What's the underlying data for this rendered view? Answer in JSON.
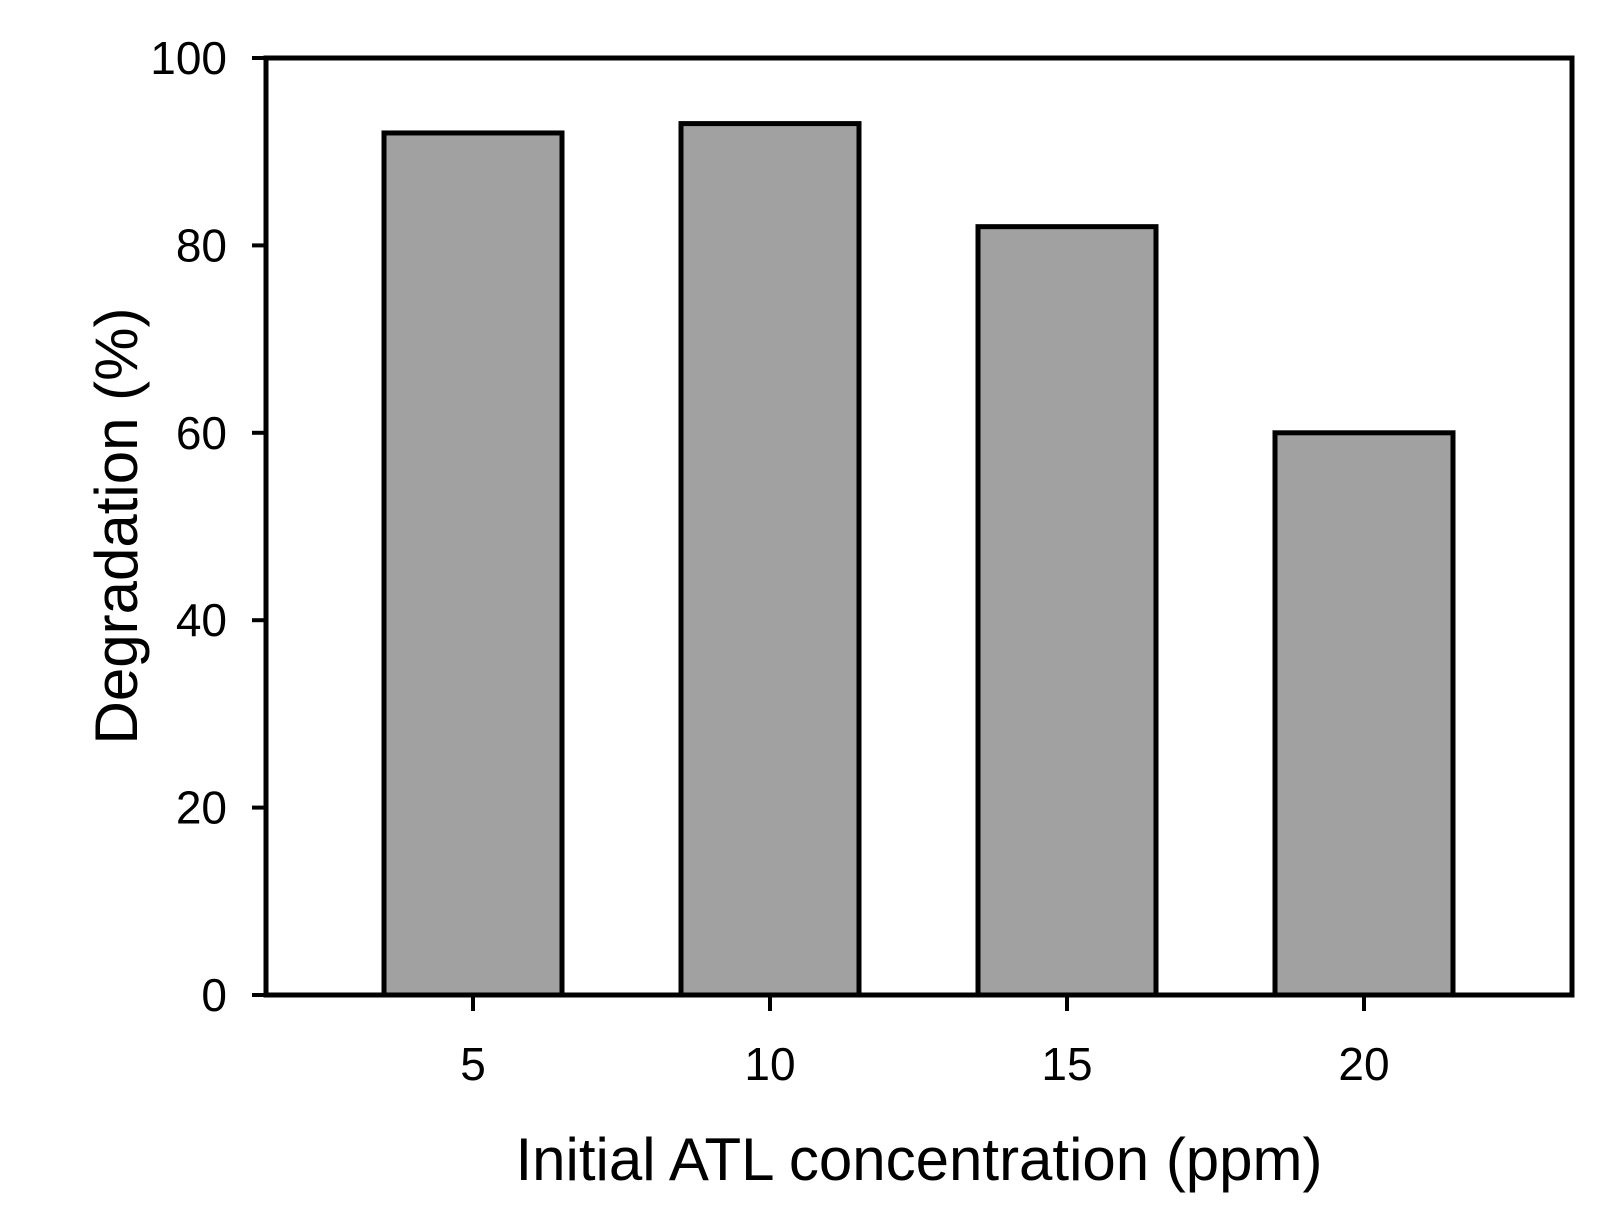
{
  "figure": {
    "background_color": "#ffffff"
  },
  "chart_data": {
    "type": "bar",
    "categories": [
      "5",
      "10",
      "15",
      "20"
    ],
    "values": [
      92,
      93,
      82,
      60
    ],
    "xlabel": "Initial ATL concentration (ppm)",
    "ylabel": "Degradation (%)",
    "ylim": [
      0,
      100
    ],
    "yticks": [
      0,
      20,
      40,
      60,
      80,
      100
    ],
    "ytick_labels": [
      "0",
      "20",
      "40",
      "60",
      "80",
      "100"
    ],
    "grid": false,
    "legend": false,
    "bar_color": "#a1a1a1",
    "bar_edge_color": "#000000",
    "axis_color": "#000000",
    "text_color": "#000000"
  }
}
